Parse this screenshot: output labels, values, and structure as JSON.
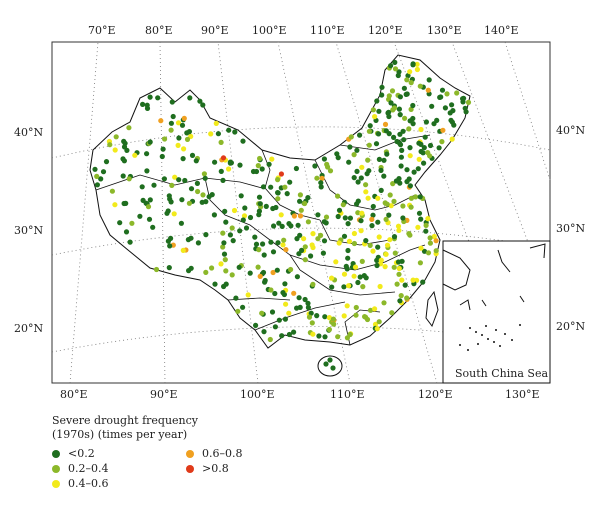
{
  "map": {
    "top_lon_labels": [
      "70°E",
      "80°E",
      "90°E",
      "100°E",
      "110°E",
      "120°E",
      "130°E",
      "140°E"
    ],
    "bottom_lon_labels": [
      "80°E",
      "90°E",
      "100°E",
      "110°E",
      "120°E",
      "130°E"
    ],
    "left_lat_labels": [
      "40°N",
      "30°N",
      "20°N"
    ],
    "right_lat_labels": [
      "40°N",
      "30°N",
      "20°N"
    ],
    "inset_label": "South China Sea"
  },
  "legend": {
    "title_line1": "Severe drought frequency",
    "title_line2": "(1970s) (times per year)",
    "items": [
      {
        "label": "<0.2",
        "color": "#1f6e1f"
      },
      {
        "label": "0.2–0.4",
        "color": "#8cb82a"
      },
      {
        "label": "0.4–0.6",
        "color": "#f2ea1b"
      },
      {
        "label": "0.6–0.8",
        "color": "#f0a020"
      },
      {
        "label": ">0.8",
        "color": "#e03a1a"
      }
    ]
  }
}
